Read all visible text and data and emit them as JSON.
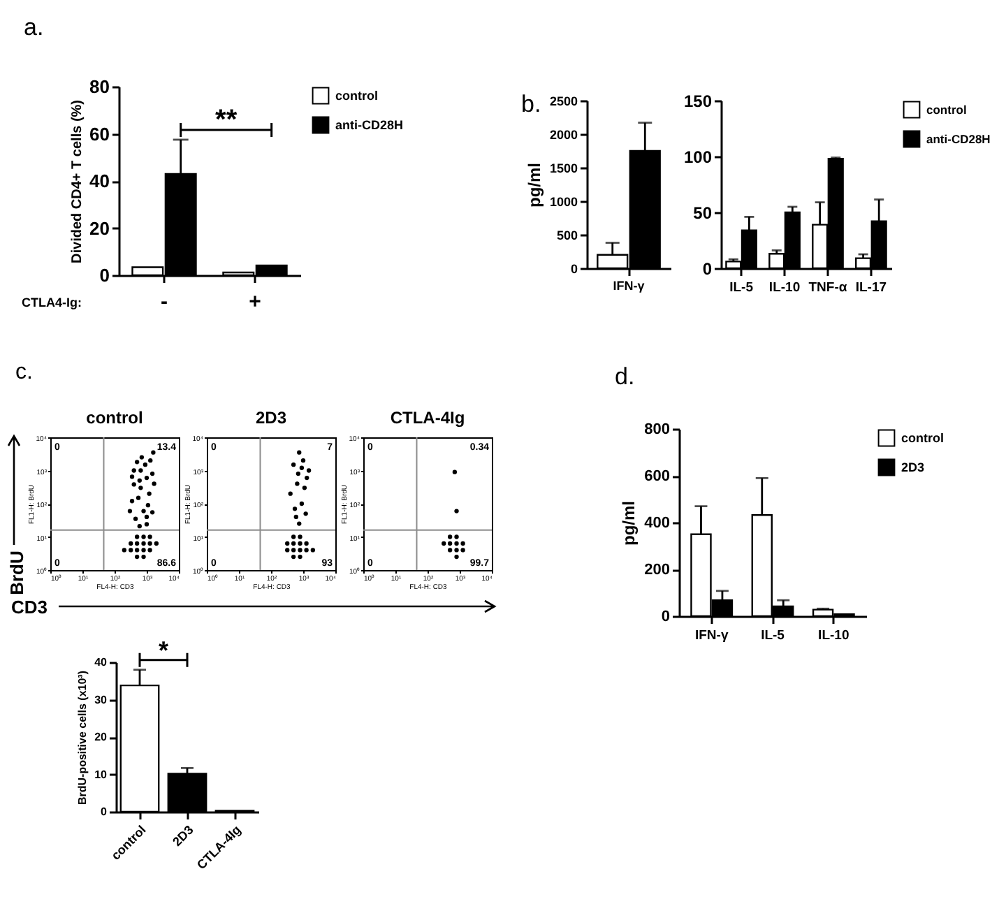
{
  "chart_data": [
    {
      "type": "bar",
      "title": "a.",
      "xlabel": "CTLA4-Ig:",
      "ylabel": "Divided CD4+ T cells (%)",
      "categories": [
        "-",
        "+"
      ],
      "series": [
        {
          "name": "control",
          "color": "#ffffff",
          "values": [
            3.4,
            1.2
          ]
        },
        {
          "name": "anti-CD28H",
          "color": "#000000",
          "values": [
            43,
            4.2
          ],
          "errors": [
            [
              43,
              57.5
            ],
            null
          ]
        }
      ],
      "ylim": [
        0,
        80
      ],
      "yticks": [
        0,
        20,
        40,
        60,
        80
      ],
      "legend": "top right",
      "annotations": [
        "**"
      ]
    },
    {
      "type": "bar",
      "title": "b.",
      "ylabel": "pg/ml",
      "categories": [
        "IFN-γ"
      ],
      "series": [
        {
          "color": "#ffffff",
          "values": [
            200
          ],
          "errors": [
            [
              200,
              380
            ]
          ]
        },
        {
          "color": "#000000",
          "values": [
            1750
          ],
          "errors": [
            [
              1750,
              2170
            ]
          ]
        }
      ],
      "ylim": [
        0,
        2500
      ],
      "yticks": [
        0,
        500,
        1000,
        1500,
        2000,
        2500
      ]
    },
    {
      "type": "bar",
      "categories": [
        "IL-5",
        "IL-10",
        "TNF-α",
        "IL-17"
      ],
      "series": [
        {
          "name": "control",
          "color": "#ffffff",
          "values": [
            6,
            13,
            39,
            9
          ],
          "errors": [
            [
              6,
              8
            ],
            [
              13,
              16
            ],
            [
              39,
              59
            ],
            [
              9,
              12.5
            ]
          ]
        },
        {
          "name": "anti-CD28H",
          "color": "#000000",
          "values": [
            34,
            50,
            98,
            42
          ],
          "errors": [
            [
              34,
              46
            ],
            [
              50,
              55
            ],
            [
              98,
              99
            ],
            [
              42,
              61.5
            ]
          ]
        }
      ],
      "ylim": [
        0,
        150
      ],
      "yticks": [
        0,
        50,
        100,
        150
      ],
      "legend": "top right"
    },
    {
      "type": "scatter",
      "title": "control",
      "xlabel": "FL4-H: CD3",
      "ylabel": "FL1-H: BrdU",
      "log": "xy",
      "xlim": [
        1,
        10000
      ],
      "ylim": [
        1,
        10000
      ],
      "xticks": [
        {
          "value": 1,
          "label": "10⁰"
        },
        {
          "value": 10,
          "label": "10¹"
        },
        {
          "value": 100,
          "label": "10²"
        },
        {
          "value": 1000,
          "label": "10³"
        },
        {
          "value": 10000,
          "label": "10⁴"
        }
      ],
      "yticks": [
        {
          "value": 1,
          "label": "10⁰"
        },
        {
          "value": 10,
          "label": "10¹"
        },
        {
          "value": 100,
          "label": "10²"
        },
        {
          "value": 1000,
          "label": "10³"
        },
        {
          "value": 10000,
          "label": "10⁴"
        }
      ],
      "marker": "circle",
      "series": [
        {
          "color": "#000000",
          "x": [
            500,
            800,
            1260,
            320,
            500,
            800,
            1260,
            2000,
            200,
            320,
            500,
            800,
            1260,
            500,
            800,
            450,
            800,
            1200,
            600,
            400,
            900,
            1500,
            700,
            350,
            1000,
            650,
            1300,
            350,
            1100,
            650,
            550,
            1700,
            1000,
            300,
            1600,
            600,
            1000,
            500,
            1500,
            400
          ],
          "values": [
            10,
            10,
            10,
            6.3,
            6.3,
            6.3,
            6.3,
            6.3,
            4,
            4,
            4,
            4,
            4,
            2.5,
            2.5,
            35,
            60,
            200,
            500,
            1000,
            1500,
            800,
            2500,
            120,
            40,
            300,
            2000,
            650,
            90,
            1000,
            150,
            400,
            24,
            60,
            3500,
            21,
            600,
            1800,
            55,
            380
          ]
        }
      ],
      "ref_lines": [
        {
          "axis": "x",
          "value": 46,
          "color": "#8c8c8c"
        },
        {
          "axis": "y",
          "value": 16,
          "color": "#8c8c8c"
        }
      ],
      "annotations": [
        "c.",
        "BrdU",
        "CD3",
        "0",
        "13.4",
        "0",
        "86.6"
      ]
    },
    {
      "type": "scatter",
      "title": "2D3",
      "xlabel": "FL4-H: CD3",
      "ylabel": "FL1-H: BrdU",
      "log": "xy",
      "xlim": [
        1,
        10000
      ],
      "ylim": [
        1,
        10000
      ],
      "xticks": [
        {
          "value": 1,
          "label": "10⁰"
        },
        {
          "value": 10,
          "label": "10¹"
        },
        {
          "value": 100,
          "label": "10²"
        },
        {
          "value": 1000,
          "label": "10³"
        },
        {
          "value": 10000,
          "label": "10⁴"
        }
      ],
      "yticks": [
        {
          "value": 1,
          "label": "10⁰"
        },
        {
          "value": 10,
          "label": "10¹"
        },
        {
          "value": 100,
          "label": "10²"
        },
        {
          "value": 1000,
          "label": "10³"
        },
        {
          "value": 10000,
          "label": "10⁴"
        }
      ],
      "marker": "circle",
      "series": [
        {
          "color": "#000000",
          "x": [
            500,
            800,
            320,
            500,
            800,
            1260,
            320,
            500,
            800,
            1260,
            2000,
            500,
            800,
            600,
            900,
            1100,
            700,
            500,
            1000,
            1300,
            750,
            400,
            1200,
            650,
            900,
            750,
            1500,
            550
          ],
          "values": [
            10,
            10,
            6.3,
            6.3,
            6.3,
            6.3,
            4,
            4,
            4,
            4,
            4,
            2.5,
            2.5,
            40,
            100,
            300,
            800,
            1500,
            2000,
            600,
            3500,
            200,
            50,
            400,
            1200,
            25,
            1000,
            70
          ]
        }
      ],
      "ref_lines": [
        {
          "axis": "x",
          "value": 46,
          "color": "#8c8c8c"
        },
        {
          "axis": "y",
          "value": 16,
          "color": "#8c8c8c"
        }
      ],
      "annotations": [
        "0",
        "7",
        "0",
        "93"
      ]
    },
    {
      "type": "scatter",
      "title": "CTLA-4Ig",
      "xlabel": "FL4-H: CD3",
      "ylabel": "FL1-H: BrdU",
      "log": "xy",
      "xlim": [
        1,
        10000
      ],
      "ylim": [
        1,
        10000
      ],
      "xticks": [
        {
          "value": 1,
          "label": "10⁰"
        },
        {
          "value": 10,
          "label": "10¹"
        },
        {
          "value": 100,
          "label": "10²"
        },
        {
          "value": 1000,
          "label": "10³"
        },
        {
          "value": 10000,
          "label": "10⁴"
        }
      ],
      "yticks": [
        {
          "value": 1,
          "label": "10⁰"
        },
        {
          "value": 10,
          "label": "10¹"
        },
        {
          "value": 100,
          "label": "10²"
        },
        {
          "value": 1000,
          "label": "10³"
        },
        {
          "value": 10000,
          "label": "10⁴"
        }
      ],
      "marker": "circle",
      "series": [
        {
          "color": "#000000",
          "x": [
            500,
            800,
            320,
            500,
            800,
            1260,
            500,
            800,
            1260,
            800,
            700,
            800
          ],
          "values": [
            10,
            10,
            6.3,
            6.3,
            6.3,
            6.3,
            4,
            4,
            4,
            2.5,
            900,
            60
          ]
        }
      ],
      "ref_lines": [
        {
          "axis": "x",
          "value": 46,
          "color": "#8c8c8c"
        },
        {
          "axis": "y",
          "value": 16,
          "color": "#8c8c8c"
        }
      ],
      "annotations": [
        "0",
        "0.34",
        "0",
        "99.7"
      ]
    },
    {
      "type": "bar",
      "ylabel": "BrdU-positive cells (x10³)",
      "categories": [
        "control",
        "2D3",
        "CTLA-4Ig"
      ],
      "values": [
        33.8,
        10.2,
        0.3
      ],
      "colors": [
        "#ffffff",
        "#000000",
        "#000000"
      ],
      "errors": [
        [
          33.8,
          38
        ],
        [
          10.2,
          11.7
        ],
        null
      ],
      "ylim": [
        0,
        40
      ],
      "yticks": [
        0,
        10,
        20,
        30,
        40
      ],
      "annotations": [
        "*"
      ]
    },
    {
      "type": "bar",
      "title": "d.",
      "ylabel": "pg/ml",
      "categories": [
        "IFN-γ",
        "IL-5",
        "IL-10"
      ],
      "series": [
        {
          "name": "control",
          "color": "#ffffff",
          "values": [
            350,
            432,
            28
          ],
          "errors": [
            [
              350,
              470
            ],
            [
              432,
              590
            ],
            [
              28,
              32
            ]
          ]
        },
        {
          "name": "2D3",
          "color": "#000000",
          "values": [
            68,
            42,
            8
          ],
          "errors": [
            [
              68,
              108
            ],
            [
              42,
              68
            ],
            null
          ]
        }
      ],
      "ylim": [
        0,
        800
      ],
      "yticks": [
        0,
        200,
        400,
        600,
        800
      ],
      "legend": "top right"
    }
  ]
}
